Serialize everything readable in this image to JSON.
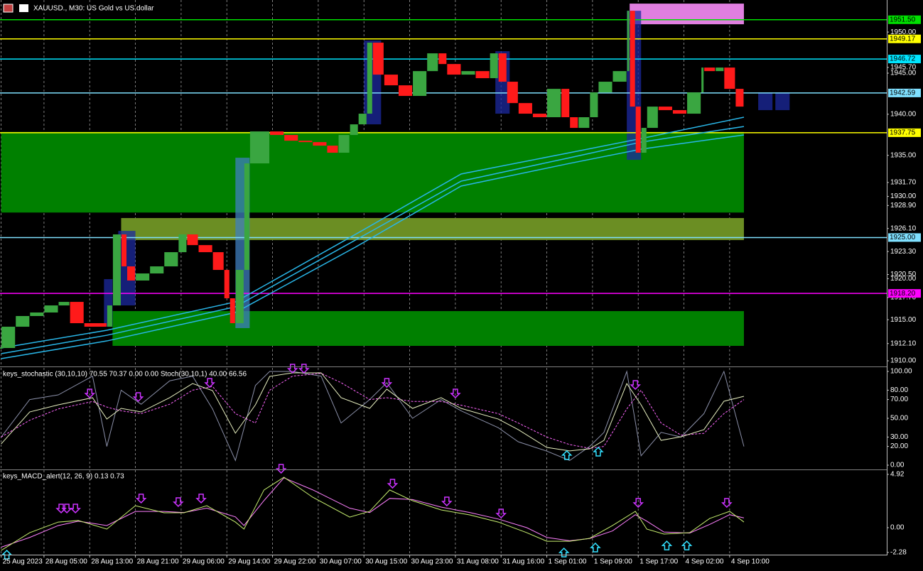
{
  "chart_data": [
    {
      "type": "candlestick",
      "title": "XAUUSD., M30:  US Gold vs US dollar",
      "xlim": [
        0.6,
        311
      ],
      "ylim": [
        1909.4,
        1953.9
      ],
      "up_color": "#3aa641",
      "down_color": "#ff1a1a",
      "x": [
        1,
        6,
        11,
        16,
        21,
        25,
        30,
        38,
        40,
        43,
        45,
        48,
        53,
        58,
        63,
        66,
        70,
        75,
        79,
        81,
        83,
        86,
        88,
        95,
        100,
        105,
        110,
        115,
        119,
        123,
        126,
        129,
        131,
        135,
        140,
        145,
        150,
        154,
        157,
        162,
        167,
        172,
        175,
        178,
        182,
        187,
        192,
        197,
        200,
        203,
        207,
        210,
        215,
        220,
        221,
        223,
        225,
        227,
        231,
        236,
        241,
        246,
        247,
        251,
        254,
        258,
        261
      ],
      "values": [
        1911.56,
        1914.15,
        1915.45,
        1915.88,
        1916.74,
        1917.17,
        1914.58,
        1914.15,
        1916.74,
        1925.38,
        1921.49,
        1919.77,
        1920.63,
        1921.49,
        1923.22,
        1925.38,
        1924.08,
        1923.22,
        1921.06,
        1917.61,
        1914.58,
        1921.06,
        1934.02,
        1937.91,
        1937.48,
        1936.78,
        1936.61,
        1936.18,
        1935.32,
        1937.48,
        1938.77,
        1940.07,
        1948.71,
        1944.82,
        1943.52,
        1942.23,
        1945.25,
        1947.41,
        1946.11,
        1944.82,
        1945.25,
        1944.39,
        1947.41,
        1943.96,
        1941.36,
        1940.07,
        1939.64,
        1943.09,
        1939.64,
        1938.34,
        1939.64,
        1942.66,
        1943.96,
        1945.25,
        1952.59,
        1940.93,
        1935.32,
        1938.34,
        1940.93,
        1940.5,
        1940.07,
        1942.66,
        1945.68,
        1945.25,
        1945.68,
        1943.09,
        1940.93
      ],
      "overlays": [
        {
          "color": "#29b6e8",
          "x": [
            1,
            38,
            83,
            125,
            162,
            200,
            225,
            261
          ],
          "values": [
            1911.56,
            1913.72,
            1917.17,
            1925.38,
            1932.73,
            1935.32,
            1937.04,
            1939.64
          ]
        },
        {
          "color": "#29b6e8",
          "x": [
            1,
            38,
            83,
            125,
            162,
            200,
            225,
            261
          ],
          "values": [
            1910.87,
            1913.11,
            1916.57,
            1924.69,
            1931.86,
            1934.71,
            1936.61,
            1938.51
          ]
        },
        {
          "color": "#29b6e8",
          "x": [
            1,
            38,
            83,
            125,
            162,
            200,
            225,
            261
          ],
          "values": [
            1910.26,
            1912.42,
            1915.88,
            1923.83,
            1931.26,
            1934.02,
            1935.75,
            1937.48
          ]
        }
      ],
      "zones": [
        {
          "x": [
            1,
            261
          ],
          "range": [
            1928.04,
            1937.85
          ],
          "color": "#008000"
        },
        {
          "x": [
            43,
            261
          ],
          "range": [
            1924.69,
            1927.37
          ],
          "color": "#6b8e23"
        },
        {
          "x": [
            40,
            261
          ],
          "range": [
            1911.82,
            1916.05
          ],
          "color": "#008000"
        },
        {
          "x": [
            221,
            261
          ],
          "range": [
            1950.95,
            1953.46
          ],
          "color": "#e07ee0"
        }
      ],
      "boxes": [
        {
          "x": [
            37,
            40
          ],
          "range": [
            1914.15,
            1919.94
          ],
          "color": "#1c2aa0"
        },
        {
          "x": [
            42,
            48
          ],
          "range": [
            1916.74,
            1925.81
          ],
          "color": "#1c2aa0"
        },
        {
          "x": [
            83,
            88
          ],
          "range": [
            1913.98,
            1934.71
          ],
          "color": "#3f7fbf"
        },
        {
          "x": [
            128,
            134
          ],
          "range": [
            1938.77,
            1948.97
          ],
          "color": "#1c2aa0"
        },
        {
          "x": [
            174,
            179
          ],
          "range": [
            1940.07,
            1947.67
          ],
          "color": "#1c2aa0"
        },
        {
          "x": [
            220,
            225
          ],
          "range": [
            1934.45,
            1952.59
          ],
          "color": "#1c2aa0"
        },
        {
          "x": [
            266,
            271
          ],
          "range": [
            1940.5,
            1942.66
          ],
          "color": "#1c2aa0"
        },
        {
          "x": [
            272,
            277
          ],
          "range": [
            1940.5,
            1942.66
          ],
          "color": "#1c2aa0"
        }
      ],
      "levels": [
        {
          "value": 1951.5,
          "label": "1951.50",
          "color": "#00e000"
        },
        {
          "value": 1949.17,
          "label": "1949.17",
          "color": "#ffff00"
        },
        {
          "value": 1946.72,
          "label": "1946.72",
          "color": "#00e5ff"
        },
        {
          "value": 1942.59,
          "label": "1942.59",
          "color": "#7fe0ff"
        },
        {
          "value": 1937.75,
          "label": "1937.75",
          "color": "#ffff00"
        },
        {
          "value": 1925,
          "label": "1925.00",
          "color": "#7fe0ff"
        },
        {
          "value": 1918.2,
          "label": "1918.20",
          "color": "#ff00ff"
        }
      ],
      "yticks": [
        {
          "value": 1950,
          "label": "1950.00"
        },
        {
          "value": 1945.7,
          "label": "1945.70"
        },
        {
          "value": 1945,
          "label": "1945.00"
        },
        {
          "value": 1940,
          "label": "1940.00"
        },
        {
          "value": 1935,
          "label": "1935.00"
        },
        {
          "value": 1931.7,
          "label": "1931.70"
        },
        {
          "value": 1930,
          "label": "1930.00"
        },
        {
          "value": 1928.9,
          "label": "1928.90"
        },
        {
          "value": 1926.1,
          "label": "1926.10"
        },
        {
          "value": 1923.3,
          "label": "1923.30"
        },
        {
          "value": 1920.5,
          "label": "1920.50"
        },
        {
          "value": 1920,
          "label": "1920.00"
        },
        {
          "value": 1917.7,
          "label": "1917.70"
        },
        {
          "value": 1915,
          "label": "1915.00"
        },
        {
          "value": 1912.1,
          "label": "1912.10"
        },
        {
          "value": 1910,
          "label": "1910.00"
        }
      ]
    },
    {
      "type": "line",
      "title": "keys_stochastic (30,10,10) 70.55 70.37 0.00 0.00 Stoch(30,10,1) 40.00 66.56",
      "xlim": [
        0.6,
        311
      ],
      "ylim": [
        -3.8,
        103.8
      ],
      "series": [
        {
          "color": "#8a8fa8",
          "dashed": false,
          "x": [
            1,
            11,
            21,
            33,
            38,
            43,
            50,
            60,
            68,
            75,
            83,
            90,
            95,
            103,
            113,
            120,
            130,
            136,
            145,
            155,
            162,
            175,
            182,
            192,
            200,
            207,
            212,
            220,
            225,
            232,
            239,
            247,
            254,
            261
          ],
          "values": [
            30,
            70,
            75,
            95,
            20,
            80,
            65,
            90,
            95,
            60,
            5,
            85,
            100,
            100,
            95,
            45,
            70,
            88,
            50,
            70,
            58,
            40,
            25,
            15,
            5,
            20,
            35,
            100,
            10,
            35,
            30,
            55,
            100,
            20
          ]
        },
        {
          "color": "#ff66ff",
          "dashed": true,
          "x": [
            1,
            11,
            21,
            33,
            38,
            43,
            50,
            60,
            68,
            75,
            83,
            90,
            95,
            103,
            113,
            120,
            130,
            136,
            145,
            155,
            162,
            175,
            182,
            192,
            200,
            207,
            212,
            220,
            225,
            232,
            239,
            247,
            254,
            261
          ],
          "values": [
            30,
            48,
            60,
            68,
            62,
            58,
            55,
            65,
            80,
            84,
            55,
            45,
            80,
            95,
            98,
            88,
            70,
            72,
            68,
            68,
            64,
            55,
            45,
            30,
            22,
            18,
            20,
            60,
            80,
            45,
            32,
            34,
            55,
            70
          ]
        },
        {
          "color": "#e8f0c0",
          "dashed": false,
          "x": [
            1,
            11,
            21,
            33,
            38,
            43,
            50,
            60,
            68,
            75,
            83,
            90,
            95,
            103,
            113,
            120,
            130,
            136,
            145,
            155,
            162,
            175,
            182,
            192,
            200,
            207,
            212,
            220,
            225,
            232,
            239,
            247,
            254,
            261
          ],
          "values": [
            22.7,
            56.8,
            64.4,
            72,
            49.2,
            60.6,
            56.8,
            72,
            87.1,
            79.5,
            34.1,
            64.4,
            94.7,
            98.5,
            98.5,
            72,
            60.6,
            81.1,
            60.6,
            72,
            60.6,
            49.2,
            37.9,
            18.9,
            15.2,
            17.4,
            26.5,
            87.1,
            64.4,
            26.5,
            30.3,
            37.9,
            68.2,
            73.5
          ]
        }
      ],
      "down_arrows": {
        "color": "#cc33ff",
        "x": [
          32,
          49,
          74,
          103,
          107,
          136,
          160,
          223
        ],
        "values": [
          72,
          68.2,
          83.3,
          98.5,
          98.5,
          83.3,
          72,
          81.1
        ]
      },
      "up_arrows": {
        "color": "#33e0ff",
        "x": [
          199,
          210
        ],
        "values": [
          15.2,
          18.9
        ]
      },
      "yticks": [
        {
          "value": 100,
          "label": "100.00"
        },
        {
          "value": 80,
          "label": "80.00"
        },
        {
          "value": 70,
          "label": "70.00"
        },
        {
          "value": 50,
          "label": "50.00"
        },
        {
          "value": 30,
          "label": "30.00"
        },
        {
          "value": 20,
          "label": "20.00"
        },
        {
          "value": 0,
          "label": "0.00"
        }
      ]
    },
    {
      "type": "line",
      "title": "keys_MACD_alert(12, 26, 9) 0.13 0.73",
      "xlim": [
        0.6,
        311
      ],
      "ylim": [
        -2.49,
        5.31
      ],
      "series": [
        {
          "color": "#ff80ff",
          "dashed": false,
          "x": [
            1,
            11,
            21,
            28,
            38,
            48,
            58,
            65,
            73,
            83,
            86,
            93,
            100,
            110,
            123,
            130,
            137,
            145,
            155,
            165,
            175,
            185,
            192,
            200,
            207,
            215,
            223,
            227,
            233,
            242,
            249,
            256,
            261
          ],
          "values": [
            -1.8,
            -0.9,
            0.2,
            0.6,
            0.2,
            1.5,
            1.5,
            1.4,
            1.8,
            1,
            0.2,
            2.5,
            4.6,
            3.5,
            1.8,
            1.4,
            2.7,
            2.6,
            1.9,
            1.4,
            0.8,
            0,
            -0.9,
            -1.2,
            -1,
            -0.3,
            1.2,
            0.6,
            -0.4,
            -0.5,
            0.3,
            1.2,
            0.9
          ]
        },
        {
          "color": "#c8f070",
          "dashed": false,
          "x": [
            1,
            11,
            21,
            28,
            38,
            48,
            58,
            65,
            73,
            83,
            86,
            93,
            100,
            110,
            123,
            130,
            137,
            145,
            155,
            165,
            175,
            185,
            192,
            200,
            207,
            215,
            223,
            227,
            233,
            242,
            249,
            256,
            261
          ],
          "values": [
            -2.1,
            -0.46,
            0.52,
            0.66,
            -0.13,
            2.03,
            1.38,
            1.38,
            2.03,
            0.52,
            -0.13,
            3.48,
            4.66,
            2.82,
            0.98,
            1.51,
            3.48,
            2.49,
            1.64,
            1.18,
            0.52,
            -0.46,
            -1.25,
            -1.25,
            -0.98,
            0.2,
            1.51,
            -0.13,
            -0.59,
            -0.46,
            0.85,
            1.51,
            0.52
          ]
        }
      ],
      "down_arrows": {
        "color": "#cc33ff",
        "x": [
          22,
          24,
          27,
          50,
          63,
          71,
          99,
          138,
          157,
          176,
          224,
          255
        ],
        "values": [
          1.38,
          1.38,
          1.38,
          2.3,
          1.97,
          2.3,
          5.05,
          3.67,
          2.03,
          0.92,
          1.9,
          1.9
        ]
      },
      "up_arrows": {
        "color": "#33e0ff",
        "x": [
          3,
          198,
          209,
          234,
          241
        ],
        "values": [
          -2.1,
          -1.9,
          -1.44,
          -1.25,
          -1.25
        ]
      },
      "yticks": [
        4.92,
        {
          "value": 0,
          "label": "0.00"
        },
        -2.28
      ],
      "xticks": [
        {
          "value": 1,
          "label": "25 Aug 2023"
        },
        {
          "value": 16,
          "label": "28 Aug 05:00"
        },
        {
          "value": 32,
          "label": "28 Aug 13:00"
        },
        {
          "value": 48,
          "label": "28 Aug 21:00"
        },
        {
          "value": 64,
          "label": "29 Aug 06:00"
        },
        {
          "value": 80,
          "label": "29 Aug 14:00"
        },
        {
          "value": 96,
          "label": "29 Aug 22:00"
        },
        {
          "value": 112,
          "label": "30 Aug 07:00"
        },
        {
          "value": 128,
          "label": "30 Aug 15:00"
        },
        {
          "value": 144,
          "label": "30 Aug 23:00"
        },
        {
          "value": 160,
          "label": "31 Aug 08:00"
        },
        {
          "value": 176,
          "label": "31 Aug 16:00"
        },
        {
          "value": 192,
          "label": "1 Sep 01:00"
        },
        {
          "value": 208,
          "label": "1 Sep 09:00"
        },
        {
          "value": 224,
          "label": "1 Sep 17:00"
        },
        {
          "value": 240,
          "label": "4 Sep 02:00"
        },
        {
          "value": 256,
          "label": "4 Sep 10:00"
        }
      ]
    }
  ]
}
